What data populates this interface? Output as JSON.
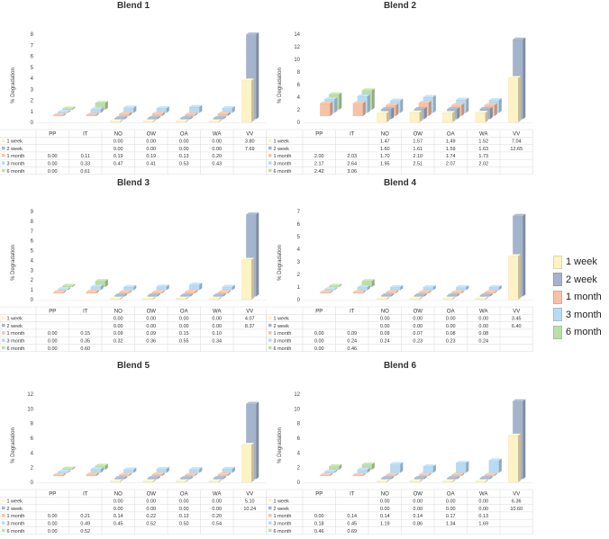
{
  "colors": {
    "1 week": "#FFF2C4",
    "2 week": "#A4B4CD",
    "1 month": "#F7C2A6",
    "3 month": "#B9DAF3",
    "6 month": "#BCDEA8"
  },
  "legend": {
    "items": [
      {
        "label": "1 week",
        "color": "#FFF2C4"
      },
      {
        "label": "2 week",
        "color": "#A4B4CD"
      },
      {
        "label": "1 month",
        "color": "#F7C2A6"
      },
      {
        "label": "3 month",
        "color": "#B9DAF3"
      },
      {
        "label": "6 month",
        "color": "#BCDEA8"
      }
    ]
  },
  "chart_data": [
    {
      "type": "bar",
      "title": "Blend 1",
      "ylabel": "% Degradation",
      "categories": [
        "PP",
        "IT",
        "NO",
        "OW",
        "OA",
        "WA",
        "VV"
      ],
      "ylim": [
        0,
        8
      ],
      "yticks": [
        0,
        1,
        2,
        3,
        4,
        5,
        6,
        7,
        8
      ],
      "series": [
        {
          "name": "1 week",
          "values": [
            null,
            null,
            0.0,
            0.0,
            0.0,
            0.0,
            3.8
          ],
          "labels": [
            "",
            "",
            "0.00",
            "0.00",
            "0.00",
            "0.00",
            "3.80"
          ]
        },
        {
          "name": "2 week",
          "values": [
            null,
            null,
            0.0,
            0.0,
            0.0,
            0.0,
            7.69
          ],
          "labels": [
            "",
            "",
            "0.00",
            "0.00",
            "0.00",
            "0.00",
            "7.69"
          ]
        },
        {
          "name": "1 month",
          "values": [
            0.0,
            0.11,
            0.19,
            0.19,
            0.13,
            0.2,
            null
          ],
          "labels": [
            "0.00",
            "0.11",
            "0.19",
            "0.19",
            "0.13",
            "0.20",
            ""
          ]
        },
        {
          "name": "3 month",
          "values": [
            0.0,
            0.33,
            0.47,
            0.41,
            0.53,
            0.43,
            null
          ],
          "labels": [
            "0.00",
            "0.33",
            "0.47",
            "0.41",
            "0.53",
            "0.43",
            ""
          ]
        },
        {
          "name": "6 month",
          "values": [
            0.0,
            0.61,
            null,
            null,
            null,
            null,
            null
          ],
          "labels": [
            "0.00",
            "0.61",
            "",
            "",
            "",
            "",
            ""
          ]
        }
      ]
    },
    {
      "type": "bar",
      "title": "Blend 2",
      "ylabel": "% Degradation",
      "categories": [
        "PP",
        "IT",
        "NO",
        "OW",
        "OA",
        "WA",
        "VV"
      ],
      "ylim": [
        0,
        14
      ],
      "yticks": [
        0,
        2,
        4,
        6,
        8,
        10,
        12,
        14
      ],
      "series": [
        {
          "name": "1 week",
          "values": [
            null,
            null,
            1.47,
            1.57,
            1.49,
            1.52,
            7.04
          ],
          "labels": [
            "",
            "",
            "1.47",
            "1.57",
            "1.49",
            "1.52",
            "7.04"
          ]
        },
        {
          "name": "2 week",
          "values": [
            null,
            null,
            1.6,
            1.61,
            1.59,
            1.63,
            12.65
          ],
          "labels": [
            "",
            "",
            "1.60",
            "1.61",
            "1.59",
            "1.63",
            "12.65"
          ]
        },
        {
          "name": "1 month",
          "values": [
            2.0,
            2.03,
            1.7,
            2.1,
            1.74,
            1.73,
            null
          ],
          "labels": [
            "2.00",
            "2.03",
            "1.70",
            "2.10",
            "1.74",
            "1.73",
            ""
          ]
        },
        {
          "name": "3 month",
          "values": [
            2.17,
            2.64,
            1.95,
            2.51,
            2.07,
            2.02,
            null
          ],
          "labels": [
            "2.17",
            "2.64",
            "1.95",
            "2.51",
            "2.07",
            "2.02",
            ""
          ]
        },
        {
          "name": "6 month",
          "values": [
            2.42,
            3.06,
            null,
            null,
            null,
            null,
            null
          ],
          "labels": [
            "2.42",
            "3.06",
            "",
            "",
            "",
            "",
            ""
          ]
        }
      ]
    },
    {
      "type": "bar",
      "title": "Blend 3",
      "ylabel": "% Degradation",
      "categories": [
        "PP",
        "IT",
        "NO",
        "OW",
        "OA",
        "WA",
        "VV"
      ],
      "ylim": [
        0,
        9
      ],
      "yticks": [
        0,
        1,
        2,
        3,
        4,
        5,
        6,
        7,
        8,
        9
      ],
      "series": [
        {
          "name": "1 week",
          "values": [
            null,
            null,
            0.0,
            0.0,
            0.0,
            0.0,
            4.07
          ],
          "labels": [
            "",
            "",
            "0.00",
            "0.00",
            "0.00",
            "0.00",
            "4.07"
          ]
        },
        {
          "name": "2 week",
          "values": [
            null,
            null,
            0.0,
            0.0,
            0.0,
            0.0,
            8.37
          ],
          "labels": [
            "",
            "",
            "0.00",
            "0.00",
            "0.00",
            "0.00",
            "8.37"
          ]
        },
        {
          "name": "1 month",
          "values": [
            0.0,
            0.15,
            0.09,
            0.09,
            0.15,
            0.1,
            null
          ],
          "labels": [
            "0.00",
            "0.15",
            "0.09",
            "0.09",
            "0.15",
            "0.10",
            ""
          ]
        },
        {
          "name": "3 month",
          "values": [
            0.0,
            0.35,
            0.32,
            0.36,
            0.55,
            0.34,
            null
          ],
          "labels": [
            "0.00",
            "0.35",
            "0.32",
            "0.36",
            "0.55",
            "0.34",
            ""
          ]
        },
        {
          "name": "6 month",
          "values": [
            0.0,
            0.6,
            null,
            null,
            null,
            null,
            null
          ],
          "labels": [
            "0.00",
            "0.60",
            "",
            "",
            "",
            "",
            ""
          ]
        }
      ]
    },
    {
      "type": "bar",
      "title": "Blend 4",
      "ylabel": "% Degradation",
      "categories": [
        "PP",
        "IT",
        "NO",
        "OW",
        "OA",
        "WA",
        "VV"
      ],
      "ylim": [
        0,
        7
      ],
      "yticks": [
        0,
        1,
        2,
        3,
        4,
        5,
        6,
        7
      ],
      "series": [
        {
          "name": "1 week",
          "values": [
            null,
            null,
            0.0,
            0.0,
            0.0,
            0.0,
            3.45
          ],
          "labels": [
            "",
            "",
            "0.00",
            "0.00",
            "0.00",
            "0.00",
            "3.45"
          ]
        },
        {
          "name": "2 week",
          "values": [
            null,
            null,
            0.0,
            0.0,
            0.0,
            0.0,
            6.4
          ],
          "labels": [
            "",
            "",
            "0.00",
            "0.00",
            "0.00",
            "0.00",
            "6.40"
          ]
        },
        {
          "name": "1 month",
          "values": [
            0.0,
            0.09,
            0.09,
            0.07,
            0.08,
            0.08,
            null
          ],
          "labels": [
            "0.00",
            "0.09",
            "0.09",
            "0.07",
            "0.08",
            "0.08",
            ""
          ]
        },
        {
          "name": "3 month",
          "values": [
            0.0,
            0.24,
            0.24,
            0.23,
            0.23,
            0.24,
            null
          ],
          "labels": [
            "0.00",
            "0.24",
            "0.24",
            "0.23",
            "0.23",
            "0.24",
            ""
          ]
        },
        {
          "name": "6 month",
          "values": [
            0.0,
            0.46,
            null,
            null,
            null,
            null,
            null
          ],
          "labels": [
            "0.00",
            "0.46",
            "",
            "",
            "",
            "",
            ""
          ]
        }
      ]
    },
    {
      "type": "bar",
      "title": "Blend 5",
      "ylabel": "% Degradation",
      "categories": [
        "PP",
        "IT",
        "NO",
        "OW",
        "OA",
        "WA",
        "VV"
      ],
      "ylim": [
        0,
        12
      ],
      "yticks": [
        0,
        2,
        4,
        6,
        8,
        10,
        12
      ],
      "series": [
        {
          "name": "1 week",
          "values": [
            null,
            null,
            0.0,
            0.0,
            0.0,
            0.0,
            5.1
          ],
          "labels": [
            "",
            "",
            "0.00",
            "0.00",
            "0.00",
            "0.00",
            "5.10"
          ]
        },
        {
          "name": "2 week",
          "values": [
            null,
            null,
            0.0,
            0.0,
            0.0,
            0.0,
            10.24
          ],
          "labels": [
            "",
            "",
            "0.00",
            "0.00",
            "0.00",
            "0.00",
            "10.24"
          ]
        },
        {
          "name": "1 month",
          "values": [
            0.0,
            0.21,
            0.14,
            0.22,
            0.13,
            0.2,
            null
          ],
          "labels": [
            "0.00",
            "0.21",
            "0.14",
            "0.22",
            "0.13",
            "0.20",
            ""
          ]
        },
        {
          "name": "3 month",
          "values": [
            0.0,
            0.49,
            0.45,
            0.52,
            0.5,
            0.54,
            null
          ],
          "labels": [
            "0.00",
            "0.49",
            "0.45",
            "0.52",
            "0.50",
            "0.54",
            ""
          ]
        },
        {
          "name": "6 month",
          "values": [
            0.0,
            0.52,
            null,
            null,
            null,
            null,
            null
          ],
          "labels": [
            "0.00",
            "0.52",
            "",
            "",
            "",
            "",
            ""
          ]
        }
      ]
    },
    {
      "type": "bar",
      "title": "Blend 6",
      "ylabel": "% Degradation",
      "categories": [
        "PP",
        "IT",
        "NO",
        "OW",
        "OA",
        "WA",
        "VV"
      ],
      "ylim": [
        0,
        12
      ],
      "yticks": [
        0,
        2,
        4,
        6,
        8,
        10,
        12
      ],
      "series": [
        {
          "name": "1 week",
          "values": [
            null,
            null,
            0.0,
            0.0,
            0.0,
            0.0,
            6.36
          ],
          "labels": [
            "",
            "",
            "0.00",
            "0.00",
            "0.00",
            "0.00",
            "6.36"
          ]
        },
        {
          "name": "2 week",
          "values": [
            null,
            null,
            0.0,
            0.0,
            0.0,
            0.0,
            10.6
          ],
          "labels": [
            "",
            "",
            "0.00",
            "0.00",
            "0.00",
            "0.00",
            "10.60"
          ]
        },
        {
          "name": "1 month",
          "values": [
            0.0,
            0.14,
            0.14,
            0.14,
            0.17,
            0.13,
            null
          ],
          "labels": [
            "0.00",
            "0.14",
            "0.14",
            "0.14",
            "0.17",
            "0.13",
            ""
          ]
        },
        {
          "name": "3 month",
          "values": [
            0.18,
            0.45,
            1.19,
            0.86,
            1.34,
            1.69,
            null
          ],
          "labels": [
            "0.18",
            "0.45",
            "1.19",
            "0.86",
            "1.34",
            "1.69",
            ""
          ]
        },
        {
          "name": "6 month",
          "values": [
            0.46,
            0.69,
            null,
            null,
            null,
            null,
            null
          ],
          "labels": [
            "0.46",
            "0.69",
            "",
            "",
            "",
            "",
            ""
          ]
        }
      ]
    }
  ]
}
